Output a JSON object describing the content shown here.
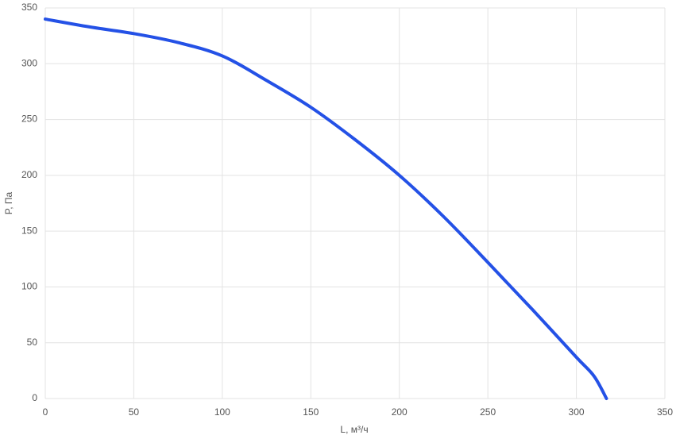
{
  "chart_data": {
    "type": "line",
    "x_label": "L, м³/ч",
    "y_label": "P, Па",
    "x": [
      0,
      25,
      50,
      75,
      100,
      125,
      150,
      175,
      200,
      225,
      250,
      275,
      300,
      310,
      317
    ],
    "series": [
      {
        "color": "#2451e6",
        "values": [
          340,
          333,
          327,
          319,
          307,
          285,
          261,
          232,
          200,
          163,
          122,
          80,
          37,
          20,
          0
        ]
      }
    ],
    "xlim": [
      0,
      350
    ],
    "xticks": [
      0,
      50,
      100,
      150,
      200,
      250,
      300,
      350
    ],
    "ylim": [
      0,
      350
    ],
    "yticks": [
      0,
      50,
      100,
      150,
      200,
      250,
      300,
      350
    ],
    "grid": true
  }
}
